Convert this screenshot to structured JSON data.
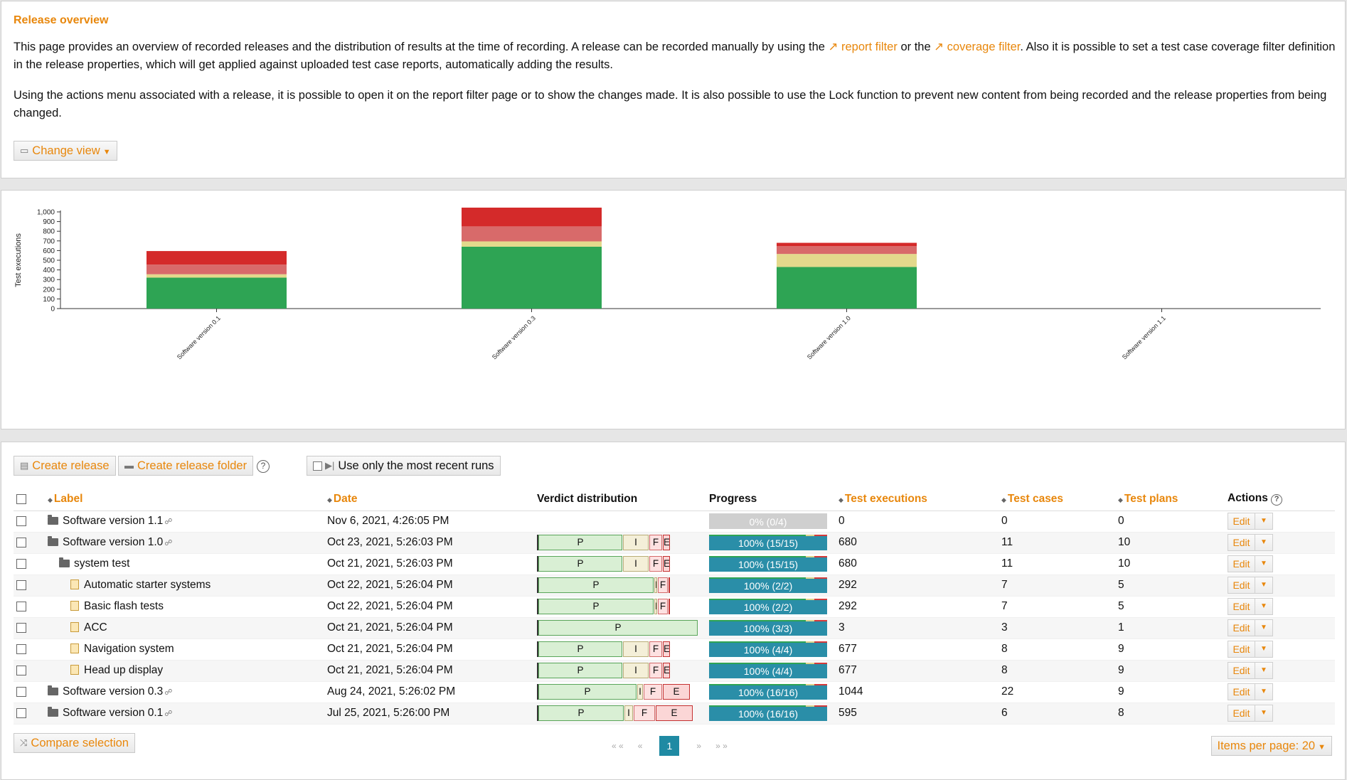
{
  "intro": {
    "title": "Release overview",
    "p1_a": "This page provides an overview of recorded releases and the distribution of results at the time of recording. A release can be recorded manually by using the ",
    "link_report": "report filter",
    "p1_b": " or the ",
    "link_coverage": "coverage filter",
    "p1_c": ". Also it is possible to set a test case coverage filter definition in the release properties, which will get applied against uploaded test case reports, automatically adding the results.",
    "p2": "Using the actions menu associated with a release, it is possible to open it on the report filter page or to show the changes made. It is also possible to use the Lock function to prevent new content from being recorded and the release properties from being changed.",
    "change_view": "Change view"
  },
  "chart_data": {
    "type": "bar",
    "stacked": true,
    "ylabel": "Test executions",
    "ylim": [
      0,
      1000
    ],
    "yticks": [
      "0",
      "100",
      "200",
      "300",
      "400",
      "500",
      "600",
      "700",
      "800",
      "900",
      "1,000"
    ],
    "categories": [
      "Software version 0.1",
      "Software version 0.3",
      "Software version 1.0",
      "Software version 1.1"
    ],
    "series": [
      {
        "color": "#2ea454",
        "values": [
          320,
          640,
          430,
          0
        ]
      },
      {
        "color": "#e3d98c",
        "values": [
          35,
          55,
          135,
          0
        ]
      },
      {
        "color": "#d86a6a",
        "values": [
          100,
          155,
          80,
          0
        ]
      },
      {
        "color": "#d42a2a",
        "values": [
          140,
          194,
          35,
          0
        ]
      }
    ]
  },
  "toolbar": {
    "create_release": "Create release",
    "create_folder": "Create release folder",
    "recent_runs": "Use only the most recent runs"
  },
  "table": {
    "headers": {
      "label": "Label",
      "date": "Date",
      "verdict": "Verdict distribution",
      "progress": "Progress",
      "executions": "Test executions",
      "cases": "Test cases",
      "plans": "Test plans",
      "actions": "Actions"
    },
    "rows": [
      {
        "label": "Software version 1.1",
        "kind": "folder",
        "indent": 0,
        "link": true,
        "date": "Nov 6, 2021, 4:26:05 PM",
        "verdict": [],
        "progress": "0% (0/4)",
        "empty": true,
        "exec": "0",
        "cases": "0",
        "plans": "0"
      },
      {
        "label": "Software version 1.0",
        "kind": "folder-open",
        "indent": 0,
        "link": true,
        "date": "Oct 23, 2021, 5:26:03 PM",
        "verdict": [
          {
            "t": "P",
            "w": 118
          },
          {
            "t": "I",
            "w": 36
          },
          {
            "t": "F",
            "w": 18
          },
          {
            "t": "E",
            "w": 10
          }
        ],
        "progress": "100% (15/15)",
        "exec": "680",
        "cases": "11",
        "plans": "10"
      },
      {
        "label": "system test",
        "kind": "folder-open",
        "indent": 1,
        "link": false,
        "date": "Oct 21, 2021, 5:26:03 PM",
        "verdict": [
          {
            "t": "P",
            "w": 118
          },
          {
            "t": "I",
            "w": 36
          },
          {
            "t": "F",
            "w": 18
          },
          {
            "t": "E",
            "w": 10
          }
        ],
        "progress": "100% (15/15)",
        "exec": "680",
        "cases": "11",
        "plans": "10"
      },
      {
        "label": "Automatic starter systems",
        "kind": "doc",
        "indent": 2,
        "link": false,
        "date": "Oct 22, 2021, 5:26:04 PM",
        "verdict": [
          {
            "t": "P",
            "w": 162
          },
          {
            "t": "I",
            "w": 4
          },
          {
            "t": "F",
            "w": 14
          },
          {
            "t": "E",
            "w": 2
          }
        ],
        "progress": "100% (2/2)",
        "exec": "292",
        "cases": "7",
        "plans": "5"
      },
      {
        "label": "Basic flash tests",
        "kind": "doc",
        "indent": 2,
        "link": false,
        "date": "Oct 22, 2021, 5:26:04 PM",
        "verdict": [
          {
            "t": "P",
            "w": 162
          },
          {
            "t": "I",
            "w": 4
          },
          {
            "t": "F",
            "w": 14
          },
          {
            "t": "E",
            "w": 2
          }
        ],
        "progress": "100% (2/2)",
        "exec": "292",
        "cases": "7",
        "plans": "5"
      },
      {
        "label": "ACC",
        "kind": "doc",
        "indent": 2,
        "link": false,
        "date": "Oct 21, 2021, 5:26:04 PM",
        "verdict": [
          {
            "t": "P",
            "w": 224
          }
        ],
        "progress": "100% (3/3)",
        "exec": "3",
        "cases": "3",
        "plans": "1"
      },
      {
        "label": "Navigation system",
        "kind": "doc",
        "indent": 2,
        "link": false,
        "date": "Oct 21, 2021, 5:26:04 PM",
        "verdict": [
          {
            "t": "P",
            "w": 118
          },
          {
            "t": "I",
            "w": 36
          },
          {
            "t": "F",
            "w": 18
          },
          {
            "t": "E",
            "w": 10
          }
        ],
        "progress": "100% (4/4)",
        "exec": "677",
        "cases": "8",
        "plans": "9"
      },
      {
        "label": "Head up display",
        "kind": "doc",
        "indent": 2,
        "link": false,
        "date": "Oct 21, 2021, 5:26:04 PM",
        "verdict": [
          {
            "t": "P",
            "w": 118
          },
          {
            "t": "I",
            "w": 36
          },
          {
            "t": "F",
            "w": 18
          },
          {
            "t": "E",
            "w": 10
          }
        ],
        "progress": "100% (4/4)",
        "exec": "677",
        "cases": "8",
        "plans": "9"
      },
      {
        "label": "Software version 0.3",
        "kind": "folder",
        "indent": 0,
        "link": true,
        "date": "Aug 24, 2021, 5:26:02 PM",
        "verdict": [
          {
            "t": "P",
            "w": 138
          },
          {
            "t": "I",
            "w": 8
          },
          {
            "t": "F",
            "w": 26
          },
          {
            "t": "E",
            "w": 38
          }
        ],
        "progress": "100% (16/16)",
        "exec": "1044",
        "cases": "22",
        "plans": "9"
      },
      {
        "label": "Software version 0.1",
        "kind": "folder",
        "indent": 0,
        "link": true,
        "date": "Jul 25, 2021, 5:26:00 PM",
        "verdict": [
          {
            "t": "P",
            "w": 120
          },
          {
            "t": "I",
            "w": 12
          },
          {
            "t": "F",
            "w": 30
          },
          {
            "t": "E",
            "w": 52
          }
        ],
        "progress": "100% (16/16)",
        "exec": "595",
        "cases": "6",
        "plans": "8"
      }
    ],
    "edit_label": "Edit"
  },
  "footer": {
    "compare": "Compare selection",
    "first": "« «",
    "prev": "«",
    "page": "1",
    "next": "»",
    "last": "» »",
    "items_per_page": "Items per page: 20"
  }
}
